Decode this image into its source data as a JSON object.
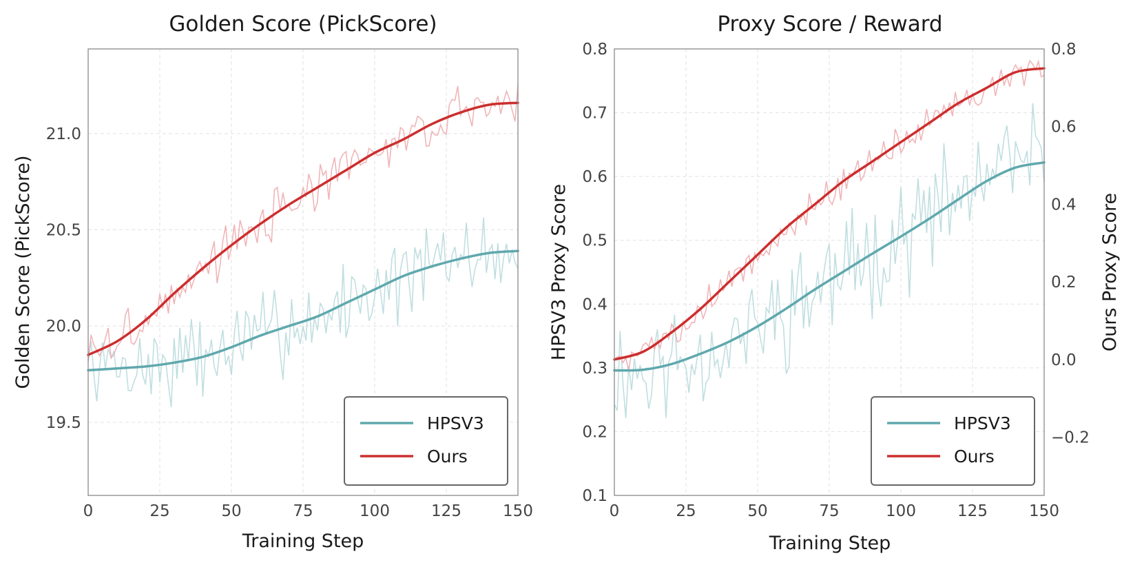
{
  "colors": {
    "hpsv3": "#5fa8ad",
    "ours": "#cc2e2e",
    "hpsv3_raw": "#b9dadd",
    "ours_raw": "#eeadb0"
  },
  "chart_data": [
    {
      "type": "line",
      "title": "Golden Score (PickScore)",
      "xlabel": "Training Step",
      "ylabel": "Golden Score (PickScore)",
      "xlim": [
        0,
        150
      ],
      "ylim": [
        19.12,
        21.44
      ],
      "xticks": [
        0,
        25,
        50,
        75,
        100,
        125,
        150
      ],
      "xtick_labels": [
        "0",
        "25",
        "50",
        "75",
        "100",
        "125",
        "150"
      ],
      "yticks": [
        19.5,
        20.0,
        20.5,
        21.0
      ],
      "ytick_labels": [
        "19.5",
        "20.0",
        "20.5",
        "21.0"
      ],
      "grid": true,
      "legend": {
        "position": "bottom-right",
        "entries": [
          "HPSV3",
          "Ours"
        ]
      },
      "series": [
        {
          "name": "HPSV3",
          "color_key": "hpsv3",
          "smooth": [
            [
              0,
              19.77
            ],
            [
              10,
              19.78
            ],
            [
              20,
              19.79
            ],
            [
              30,
              19.81
            ],
            [
              40,
              19.84
            ],
            [
              50,
              19.89
            ],
            [
              60,
              19.95
            ],
            [
              70,
              20.0
            ],
            [
              80,
              20.05
            ],
            [
              90,
              20.12
            ],
            [
              100,
              20.19
            ],
            [
              110,
              20.26
            ],
            [
              120,
              20.31
            ],
            [
              130,
              20.35
            ],
            [
              140,
              20.38
            ],
            [
              150,
              20.39
            ]
          ],
          "raw_noise": 0.28,
          "raw_seed": 7
        },
        {
          "name": "Ours",
          "color_key": "ours",
          "smooth": [
            [
              0,
              19.85
            ],
            [
              10,
              19.92
            ],
            [
              20,
              20.03
            ],
            [
              30,
              20.17
            ],
            [
              40,
              20.3
            ],
            [
              50,
              20.42
            ],
            [
              60,
              20.53
            ],
            [
              70,
              20.63
            ],
            [
              80,
              20.72
            ],
            [
              90,
              20.81
            ],
            [
              100,
              20.9
            ],
            [
              110,
              20.97
            ],
            [
              120,
              21.05
            ],
            [
              130,
              21.11
            ],
            [
              140,
              21.15
            ],
            [
              150,
              21.16
            ]
          ],
          "raw_noise": 0.15,
          "raw_seed": 3
        }
      ]
    },
    {
      "type": "line",
      "title": "Proxy Score / Reward",
      "xlabel": "Training Step",
      "ylabel": "HPSV3 Proxy Score",
      "ylabel_right": "Ours Proxy Score",
      "xlim": [
        0,
        150
      ],
      "ylim": [
        0.1,
        0.8
      ],
      "ylim_right": [
        -0.35,
        0.8
      ],
      "xticks": [
        0,
        25,
        50,
        75,
        100,
        125,
        150
      ],
      "xtick_labels": [
        "0",
        "25",
        "50",
        "75",
        "100",
        "125",
        "150"
      ],
      "yticks": [
        0.1,
        0.2,
        0.3,
        0.4,
        0.5,
        0.6,
        0.7,
        0.8
      ],
      "ytick_labels": [
        "0.1",
        "0.2",
        "0.3",
        "0.4",
        "0.5",
        "0.6",
        "0.7",
        "0.8"
      ],
      "yticks_right": [
        -0.2,
        0.0,
        0.2,
        0.4,
        0.6,
        0.8
      ],
      "ytick_labels_right": [
        "−0.2",
        "0.0",
        "0.2",
        "0.4",
        "0.6",
        "0.8"
      ],
      "grid": true,
      "legend": {
        "position": "bottom-right",
        "entries": [
          "HPSV3",
          "Ours"
        ]
      },
      "series": [
        {
          "name": "HPSV3",
          "axis": "left",
          "color_key": "hpsv3",
          "smooth": [
            [
              0,
              0.296
            ],
            [
              10,
              0.297
            ],
            [
              20,
              0.306
            ],
            [
              30,
              0.322
            ],
            [
              40,
              0.341
            ],
            [
              50,
              0.365
            ],
            [
              60,
              0.393
            ],
            [
              70,
              0.423
            ],
            [
              80,
              0.451
            ],
            [
              90,
              0.479
            ],
            [
              100,
              0.506
            ],
            [
              110,
              0.534
            ],
            [
              120,
              0.564
            ],
            [
              130,
              0.593
            ],
            [
              140,
              0.614
            ],
            [
              150,
              0.622
            ]
          ],
          "raw_noise": 0.11,
          "raw_seed": 11
        },
        {
          "name": "Ours",
          "axis": "right",
          "color_key": "ours",
          "smooth": [
            [
              0,
              0.0
            ],
            [
              10,
              0.02
            ],
            [
              20,
              0.07
            ],
            [
              30,
              0.13
            ],
            [
              40,
              0.2
            ],
            [
              50,
              0.27
            ],
            [
              60,
              0.34
            ],
            [
              70,
              0.4
            ],
            [
              80,
              0.46
            ],
            [
              90,
              0.51
            ],
            [
              100,
              0.56
            ],
            [
              110,
              0.61
            ],
            [
              120,
              0.66
            ],
            [
              130,
              0.7
            ],
            [
              140,
              0.74
            ],
            [
              150,
              0.75
            ]
          ],
          "raw_noise": 0.05,
          "raw_seed": 5
        }
      ]
    }
  ]
}
